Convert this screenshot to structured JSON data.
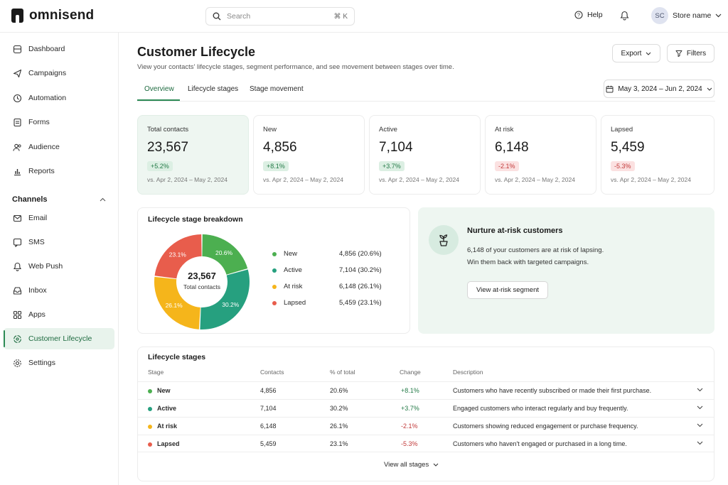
{
  "app": {
    "logo_text": "omnisend"
  },
  "topbar": {
    "search_placeholder": "Search",
    "search_shortcut": "⌘ K",
    "help_label": "Help",
    "avatar_initials": "SC",
    "store_name": "Store name"
  },
  "sidebar": {
    "items": [
      {
        "label": "Dashboard",
        "icon": "home-icon"
      },
      {
        "label": "Campaigns",
        "icon": "send-icon"
      },
      {
        "label": "Automation",
        "icon": "automation-icon"
      },
      {
        "label": "Forms",
        "icon": "forms-icon"
      },
      {
        "label": "Audience",
        "icon": "audience-icon"
      },
      {
        "label": "Reports",
        "icon": "reports-icon"
      }
    ],
    "channels_heading": "Channels",
    "channel_items": [
      {
        "label": "Email",
        "icon": "mail-icon"
      },
      {
        "label": "SMS",
        "icon": "sms-icon"
      },
      {
        "label": "Web Push",
        "icon": "bell-icon"
      },
      {
        "label": "Inbox",
        "icon": "inbox-icon"
      },
      {
        "label": "Apps",
        "icon": "apps-icon"
      },
      {
        "label": "Customer Lifecycle",
        "icon": "lifecycle-icon",
        "active": true
      },
      {
        "label": "Settings",
        "icon": "settings-icon"
      }
    ]
  },
  "page": {
    "title": "Customer Lifecycle",
    "subtitle": "View your contacts' lifecycle stages, segment performance, and see movement between stages over time.",
    "export_label": "Export",
    "filters_label": "Filters",
    "date_range": "May 3, 2024 – Jun 2, 2024",
    "tabs": [
      "Overview",
      "Lifecycle stages",
      "Stage movement"
    ],
    "active_tab": "Overview"
  },
  "kpis": [
    {
      "label": "Total contacts",
      "value": "23,567",
      "change": "+5.2%",
      "direction": "up",
      "compare": "vs. Apr 2, 2024 – May 2, 2024"
    },
    {
      "label": "New",
      "value": "4,856",
      "change": "+8.1%",
      "direction": "up",
      "compare": "vs. Apr 2, 2024 – May 2, 2024"
    },
    {
      "label": "Active",
      "value": "7,104",
      "change": "+3.7%",
      "direction": "up",
      "compare": "vs. Apr 2, 2024 – May 2, 2024"
    },
    {
      "label": "At risk",
      "value": "6,148",
      "change": "-2.1%",
      "direction": "down",
      "compare": "vs. Apr 2, 2024 – May 2, 2024"
    },
    {
      "label": "Lapsed",
      "value": "5,459",
      "change": "-5.3%",
      "direction": "down",
      "compare": "vs. Apr 2, 2024 – May 2, 2024"
    }
  ],
  "breakdown": {
    "title": "Lifecycle stage breakdown",
    "center_value": "23,567",
    "center_label": "Total contacts",
    "legend": [
      {
        "name": "New",
        "value": "4,856 (20.6%)"
      },
      {
        "name": "Active",
        "value": "7,104 (30.2%)"
      },
      {
        "name": "At risk",
        "value": "6,148 (26.1%)"
      },
      {
        "name": "Lapsed",
        "value": "5,459 (23.1%)"
      }
    ]
  },
  "chart_data": {
    "type": "pie",
    "categories": [
      "New",
      "Active",
      "At risk",
      "Lapsed"
    ],
    "values": [
      20.6,
      30.2,
      26.1,
      23.1
    ],
    "labels": [
      "20.6%",
      "30.2%",
      "26.1%",
      "23.1%"
    ],
    "colors": [
      "#4caf50",
      "#26a07f",
      "#f5b51b",
      "#e85d4c"
    ],
    "title": "Lifecycle stage breakdown",
    "legend": "right"
  },
  "nurture": {
    "title": "Nurture at-risk customers",
    "line1": "6,148 of your customers are at risk of lapsing.",
    "line2": "Win them back with targeted campaigns.",
    "button": "View at-risk segment"
  },
  "stages_table": {
    "title": "Lifecycle stages",
    "headers": [
      "Stage",
      "Contacts",
      "% of total",
      "Change",
      "Description"
    ],
    "rows": [
      {
        "stage": "New",
        "contacts": "4,856",
        "pct": "20.6%",
        "change": "+8.1%",
        "direction": "up",
        "description": "Customers who have recently subscribed or made their first purchase."
      },
      {
        "stage": "Active",
        "contacts": "7,104",
        "pct": "30.2%",
        "change": "+3.7%",
        "direction": "up",
        "description": "Engaged customers who interact regularly and buy frequently."
      },
      {
        "stage": "At risk",
        "contacts": "6,148",
        "pct": "26.1%",
        "change": "-2.1%",
        "direction": "down",
        "description": "Customers showing reduced engagement or purchase frequency."
      },
      {
        "stage": "Lapsed",
        "contacts": "5,459",
        "pct": "23.1%",
        "change": "-5.3%",
        "direction": "down",
        "description": "Customers who haven't engaged or purchased in a long time."
      }
    ],
    "view_all": "View all stages"
  },
  "colors": {
    "accent": "#2c8a55",
    "new": "#4caf50",
    "active": "#26a07f",
    "at_risk": "#f5b51b",
    "lapsed": "#e85d4c"
  }
}
